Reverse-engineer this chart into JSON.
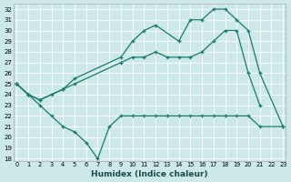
{
  "xlabel": "Humidex (Indice chaleur)",
  "bg_color": "#cde8e8",
  "grid_color": "#ffffff",
  "line_color": "#1a7a6e",
  "ylim": [
    18,
    32
  ],
  "xlim": [
    -0.5,
    23
  ],
  "yticks": [
    18,
    19,
    20,
    21,
    22,
    23,
    24,
    25,
    26,
    27,
    28,
    29,
    30,
    31,
    32
  ],
  "xticks": [
    0,
    1,
    2,
    3,
    4,
    5,
    6,
    7,
    8,
    9,
    10,
    11,
    12,
    13,
    14,
    15,
    16,
    17,
    18,
    19,
    20,
    21,
    22,
    23
  ],
  "line_top": {
    "x": [
      0,
      1,
      2,
      4,
      5,
      9,
      10,
      11,
      12,
      14,
      15,
      16,
      17,
      18,
      19,
      20,
      21,
      23
    ],
    "y": [
      25,
      24,
      23.5,
      24.5,
      25.5,
      27.5,
      29,
      30,
      30.5,
      29,
      31,
      31,
      32,
      32,
      31,
      30,
      26,
      21
    ]
  },
  "line_mid": {
    "x": [
      0,
      1,
      2,
      3,
      4,
      5,
      9,
      10,
      11,
      12,
      13,
      14,
      15,
      16,
      17,
      18,
      19,
      20,
      21
    ],
    "y": [
      25,
      24,
      23.5,
      24,
      24.5,
      25,
      27,
      27.5,
      27.5,
      28,
      27.5,
      27.5,
      27.5,
      28,
      29,
      30,
      30,
      26,
      23
    ]
  },
  "line_bot": {
    "x": [
      0,
      1,
      2,
      3,
      4,
      5,
      6,
      7,
      8,
      9,
      10,
      11,
      12,
      13,
      14,
      15,
      16,
      17,
      18,
      19,
      20,
      21,
      23
    ],
    "y": [
      25,
      24,
      23,
      22,
      21,
      20.5,
      19.5,
      18,
      21,
      22,
      22,
      22,
      22,
      22,
      22,
      22,
      22,
      22,
      22,
      22,
      22,
      21,
      21
    ]
  }
}
